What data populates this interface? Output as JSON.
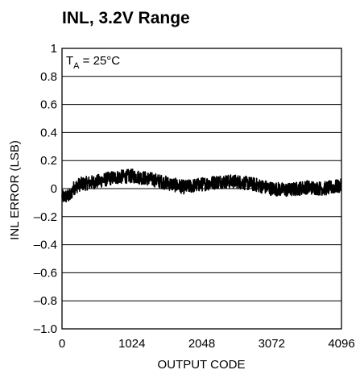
{
  "chart_data": {
    "type": "line",
    "title": "INL, 3.2V Range",
    "xlabel": "OUTPUT CODE",
    "ylabel": "INL ERROR (LSB)",
    "annotation": {
      "main": "T",
      "sub": "A",
      "rest": " = 25°C"
    },
    "xlim": [
      0,
      4096
    ],
    "ylim": [
      -1.0,
      1.0
    ],
    "x_ticks": [
      0,
      1024,
      2048,
      3072,
      4096
    ],
    "x_tick_labels": [
      "0",
      "1024",
      "2048",
      "3072",
      "4096"
    ],
    "y_ticks": [
      1,
      0.8,
      0.6,
      0.4,
      0.2,
      0,
      -0.2,
      -0.4,
      -0.6,
      -0.8,
      -1.0
    ],
    "y_tick_labels": [
      "1",
      "0.8",
      "0.6",
      "0.4",
      "0.2",
      "0",
      "–0.2",
      "–0.4",
      "–0.6",
      "–0.8",
      "–1.0"
    ],
    "grid": "horizontal",
    "series": [
      {
        "color": "#000000",
        "noise_amplitude": 0.05,
        "x": [
          0,
          128,
          160,
          256,
          512,
          768,
          1024,
          1280,
          1536,
          1792,
          2048,
          2304,
          2560,
          2816,
          3072,
          3328,
          3584,
          3840,
          4096
        ],
        "y": [
          -0.06,
          -0.05,
          0.0,
          0.03,
          0.05,
          0.08,
          0.09,
          0.07,
          0.04,
          0.01,
          0.03,
          0.05,
          0.05,
          0.03,
          0.0,
          -0.01,
          0.01,
          0.0,
          0.02
        ]
      }
    ]
  }
}
